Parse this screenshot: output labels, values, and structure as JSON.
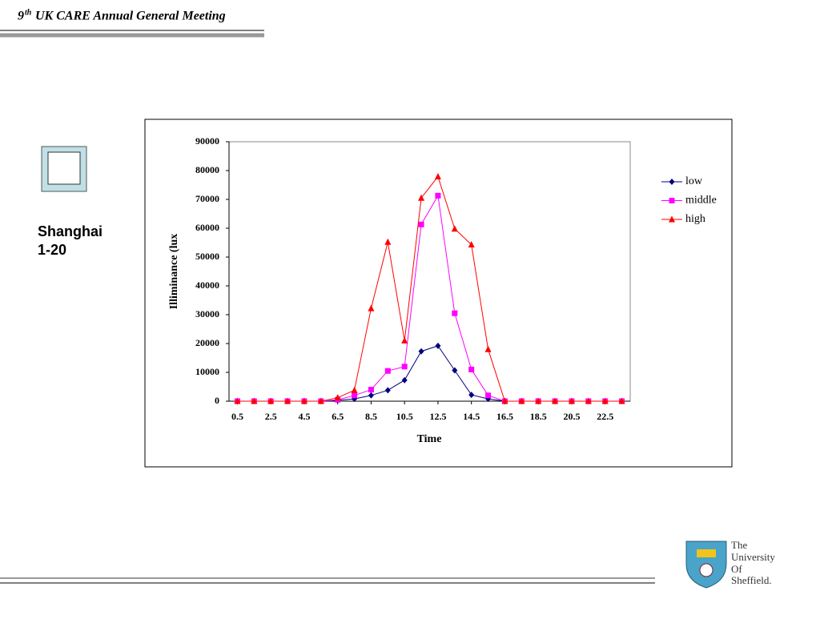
{
  "header": {
    "number": "9",
    "ordinal": "th",
    "title": "UK CARE Annual General Meeting"
  },
  "caption": [
    "Shanghai",
    "1-20"
  ],
  "logo": [
    "The",
    "University",
    "Of",
    "Sheffield."
  ],
  "chart_data": {
    "type": "line",
    "x_label": "Time",
    "y_label": "Illiminance (lux",
    "x": [
      0.5,
      1.5,
      2.5,
      3.5,
      4.5,
      5.5,
      6.5,
      7.5,
      8.5,
      9.5,
      10.5,
      11.5,
      12.5,
      13.5,
      14.5,
      15.5,
      16.5,
      17.5,
      18.5,
      19.5,
      20.5,
      21.5,
      22.5,
      23.5
    ],
    "xlim": [
      0,
      24
    ],
    "xticks": [
      0.5,
      2.5,
      4.5,
      6.5,
      8.5,
      10.5,
      12.5,
      14.5,
      16.5,
      18.5,
      20.5,
      22.5
    ],
    "ylim": [
      0,
      90000
    ],
    "yticks": [
      0,
      10000,
      20000,
      30000,
      40000,
      50000,
      60000,
      70000,
      80000,
      90000
    ],
    "legend": "right",
    "series": [
      {
        "name": "low",
        "color": "#000080",
        "marker": "diamond",
        "values": [
          0,
          0,
          0,
          0,
          0,
          0,
          300,
          800,
          2000,
          3800,
          7300,
          17300,
          19200,
          10700,
          2200,
          800,
          0,
          0,
          0,
          0,
          0,
          0,
          0,
          0
        ]
      },
      {
        "name": "middle",
        "color": "#ff00ff",
        "marker": "square",
        "values": [
          0,
          0,
          0,
          0,
          0,
          0,
          500,
          2000,
          4000,
          10500,
          12000,
          61300,
          71300,
          30500,
          11000,
          2000,
          0,
          0,
          0,
          0,
          0,
          0,
          0,
          0
        ]
      },
      {
        "name": "high",
        "color": "#ff0000",
        "marker": "triangle",
        "values": [
          0,
          0,
          0,
          0,
          0,
          0,
          1200,
          3800,
          32200,
          55200,
          21000,
          70500,
          77900,
          59800,
          54300,
          18000,
          0,
          0,
          0,
          0,
          0,
          0,
          0,
          0
        ]
      }
    ]
  }
}
